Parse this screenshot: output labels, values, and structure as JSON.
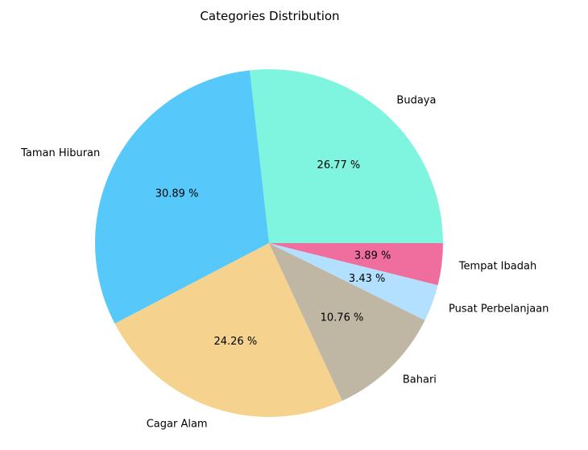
{
  "chart_data": {
    "type": "pie",
    "title": "Categories Distribution",
    "slices": [
      {
        "label": "Budaya",
        "value": 26.77,
        "pct_label": "26.77 %",
        "color": "#7FF5E0"
      },
      {
        "label": "Taman Hiburan",
        "value": 30.89,
        "pct_label": "30.89 %",
        "color": "#56C8FA"
      },
      {
        "label": "Cagar Alam",
        "value": 24.26,
        "pct_label": "24.26 %",
        "color": "#F5D38F"
      },
      {
        "label": "Bahari",
        "value": 10.76,
        "pct_label": "10.76 %",
        "color": "#BFB7A3"
      },
      {
        "label": "Pusat Perbelanjaan",
        "value": 3.43,
        "pct_label": "3.43 %",
        "color": "#B3E0FE"
      },
      {
        "label": "Tempat Ibadah",
        "value": 3.89,
        "pct_label": "3.89 %",
        "color": "#F06E9E"
      }
    ],
    "start_angle_deg": 0,
    "direction": "counterclockwise",
    "legend": "none"
  }
}
